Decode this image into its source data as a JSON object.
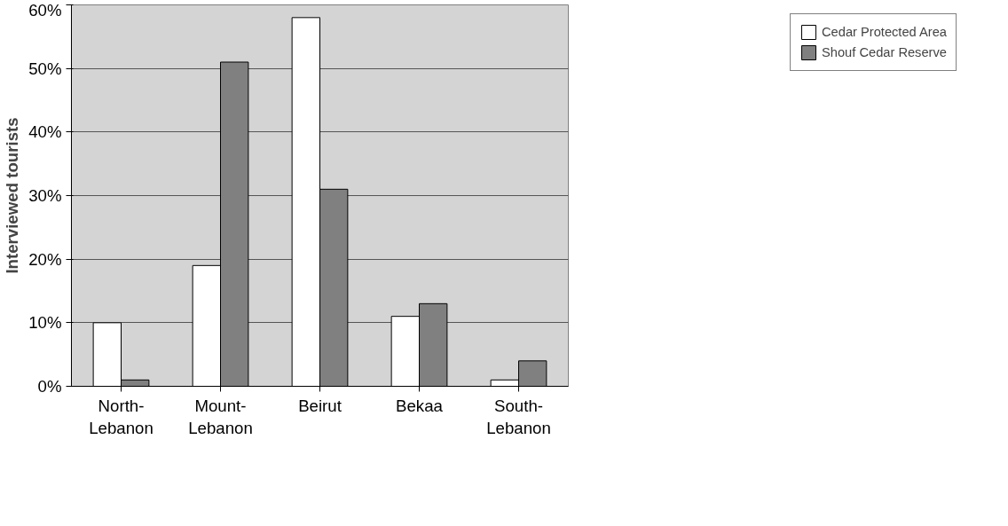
{
  "chart_data": {
    "type": "bar",
    "ylabel": "Interviewed tourists",
    "categories": [
      "North-\nLebanon",
      "Mount-\nLebanon",
      "Beirut",
      "Bekaa",
      "South-\nLebanon"
    ],
    "series": [
      {
        "name": "Cedar Protected Area",
        "color": "#ffffff",
        "values": [
          10,
          19,
          58,
          11,
          1
        ]
      },
      {
        "name": "Shouf Cedar Reserve",
        "color": "#808080",
        "values": [
          1,
          51,
          31,
          13,
          4
        ]
      }
    ],
    "ylim": [
      0,
      60
    ],
    "yticks": [
      {
        "value": 0,
        "label": "0%"
      },
      {
        "value": 10,
        "label": "10%"
      },
      {
        "value": 20,
        "label": "20%"
      },
      {
        "value": 30,
        "label": "30%"
      },
      {
        "value": 40,
        "label": "40%"
      },
      {
        "value": 50,
        "label": "50%"
      },
      {
        "value": 60,
        "label": "60%"
      }
    ],
    "grid": "y",
    "legend": "top right"
  }
}
